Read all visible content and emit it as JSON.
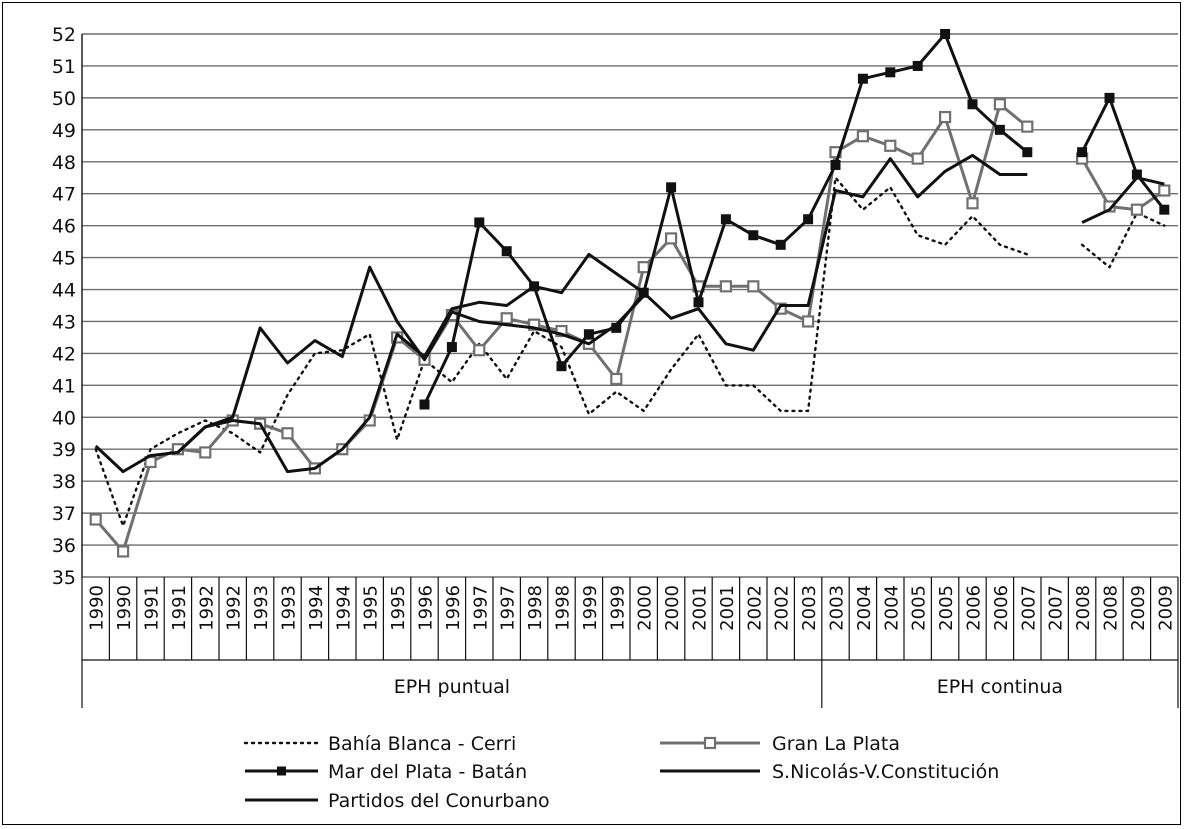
{
  "chart_data": {
    "type": "line",
    "ylim": [
      35,
      52
    ],
    "y_ticks": [
      35,
      36,
      37,
      38,
      39,
      40,
      41,
      42,
      43,
      44,
      45,
      46,
      47,
      48,
      49,
      50,
      51,
      52
    ],
    "grid": "horizontal",
    "legend_position": "bottom",
    "categories": [
      "1990",
      "1990",
      "1991",
      "1991",
      "1992",
      "1992",
      "1993",
      "1993",
      "1994",
      "1994",
      "1995",
      "1995",
      "1996",
      "1996",
      "1997",
      "1997",
      "1998",
      "1998",
      "1999",
      "1999",
      "2000",
      "2000",
      "2001",
      "2001",
      "2002",
      "2002",
      "2003",
      "2003",
      "2004",
      "2004",
      "2005",
      "2005",
      "2006",
      "2006",
      "2007",
      "2007",
      "2008",
      "2008",
      "2009",
      "2009"
    ],
    "groups": [
      {
        "label": "EPH puntual",
        "start": 0,
        "end": 26
      },
      {
        "label": "EPH continua",
        "start": 27,
        "end": 39
      }
    ],
    "series": [
      {
        "name": "Bahía Blanca - Cerri",
        "style": "dotted",
        "marker": "none",
        "values": [
          39.0,
          36.6,
          39.0,
          39.5,
          39.9,
          39.5,
          38.9,
          40.7,
          42.0,
          42.1,
          42.6,
          39.3,
          41.8,
          41.1,
          42.3,
          41.2,
          42.7,
          42.2,
          40.1,
          40.8,
          40.2,
          41.5,
          42.6,
          41.0,
          41.0,
          40.2,
          40.2,
          47.5,
          46.5,
          47.2,
          45.7,
          45.4,
          46.3,
          45.4,
          45.1,
          null,
          45.4,
          44.7,
          46.4,
          46.0
        ]
      },
      {
        "name": "Gran La Plata",
        "style": "solid",
        "marker": "open-square",
        "color": "#707070",
        "values": [
          36.8,
          35.8,
          38.6,
          39.0,
          38.9,
          39.9,
          39.8,
          39.5,
          38.4,
          39.0,
          39.9,
          42.5,
          41.8,
          43.2,
          42.1,
          43.1,
          42.9,
          42.7,
          42.3,
          41.2,
          44.7,
          45.6,
          44.1,
          44.1,
          44.1,
          43.4,
          43.0,
          48.3,
          48.8,
          48.5,
          48.1,
          49.4,
          46.7,
          49.8,
          49.1,
          null,
          48.1,
          46.6,
          46.5,
          47.1
        ]
      },
      {
        "name": "Mar del Plata - Batán",
        "style": "solid",
        "marker": "filled-square",
        "color": "#111111",
        "values": [
          null,
          null,
          null,
          null,
          null,
          null,
          null,
          null,
          null,
          null,
          null,
          null,
          40.4,
          42.2,
          46.1,
          45.2,
          44.1,
          41.6,
          42.6,
          42.8,
          43.9,
          47.2,
          43.6,
          46.2,
          45.7,
          45.4,
          46.2,
          47.9,
          50.6,
          50.8,
          51.0,
          52.0,
          49.8,
          49.0,
          48.3,
          null,
          48.3,
          50.0,
          47.6,
          46.5
        ]
      },
      {
        "name": "S.Nicolás-V.Constitución",
        "style": "solid",
        "marker": "none",
        "color": "#111111",
        "values": [
          39.1,
          38.3,
          38.8,
          38.9,
          39.7,
          39.9,
          39.8,
          38.3,
          38.4,
          39.0,
          40.0,
          42.6,
          41.9,
          43.4,
          43.6,
          43.5,
          44.1,
          43.9,
          45.1,
          44.5,
          43.9,
          43.1,
          43.4,
          42.3,
          42.1,
          43.5,
          43.5,
          47.1,
          46.9,
          48.1,
          46.9,
          47.7,
          48.2,
          47.6,
          47.6,
          null,
          46.1,
          46.5,
          47.5,
          47.3
        ]
      },
      {
        "name": "Partidos del Conurbano",
        "style": "solid",
        "marker": "none",
        "color": "#111111",
        "values": [
          null,
          null,
          null,
          38.9,
          39.7,
          40.0,
          42.8,
          41.7,
          42.4,
          41.9,
          44.7,
          43.0,
          41.8,
          43.3,
          43.0,
          42.9,
          42.8,
          42.6,
          42.3,
          42.9,
          43.8,
          null,
          null,
          null,
          null,
          null,
          null,
          null,
          null,
          null,
          null,
          null,
          null,
          null,
          null,
          null,
          null,
          null,
          null,
          null
        ]
      }
    ]
  },
  "legend": {
    "items": [
      {
        "label": "Bahía Blanca - Cerri"
      },
      {
        "label": "Gran La Plata"
      },
      {
        "label": "Mar del Plata - Batán"
      },
      {
        "label": "S.Nicolás-V.Constitución"
      },
      {
        "label": "Partidos del Conurbano"
      }
    ]
  }
}
